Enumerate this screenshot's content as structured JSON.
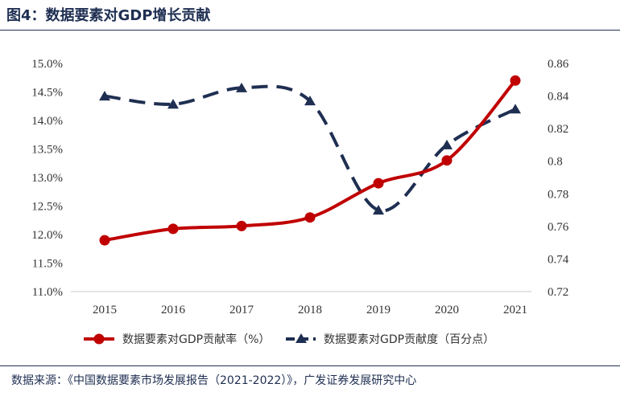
{
  "header": {
    "title": "图4：数据要素对GDP增长贡献"
  },
  "footer": {
    "source": "数据来源：《中国数据要素市场发展报告（2021-2022）》，广发证券发展研究中心"
  },
  "chart_data": {
    "type": "line",
    "categories": [
      "2015",
      "2016",
      "2017",
      "2018",
      "2019",
      "2020",
      "2021"
    ],
    "series": [
      {
        "name": "数据要素对GDP贡献率（%）",
        "axis": "left",
        "color": "#c00000",
        "style": "solid",
        "marker": "circle",
        "values": [
          11.9,
          12.1,
          12.15,
          12.3,
          12.9,
          13.3,
          14.7
        ]
      },
      {
        "name": "数据要素对GDP贡献度（百分点）",
        "axis": "right",
        "color": "#1f2f52",
        "style": "dashed",
        "marker": "triangle",
        "values": [
          0.84,
          0.835,
          0.845,
          0.837,
          0.77,
          0.81,
          0.832
        ]
      }
    ],
    "y_left": {
      "ylim": [
        11.0,
        15.0
      ],
      "ticks": [
        "11.0%",
        "11.5%",
        "12.0%",
        "12.5%",
        "13.0%",
        "13.5%",
        "14.0%",
        "14.5%",
        "15.0%"
      ]
    },
    "y_right": {
      "ylim": [
        0.72,
        0.86
      ],
      "ticks": [
        "0.72",
        "0.74",
        "0.76",
        "0.78",
        "0.8",
        "0.82",
        "0.84",
        "0.86"
      ]
    },
    "grid": false,
    "legend_position": "bottom"
  }
}
